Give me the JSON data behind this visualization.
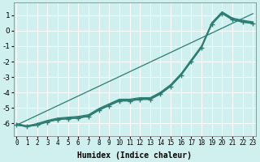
{
  "xlabel": "Humidex (Indice chaleur)",
  "background_color": "#cff0ee",
  "grid_color": "#ffffff",
  "line_color": "#2d7b73",
  "xlim": [
    -0.3,
    23.3
  ],
  "ylim": [
    -6.8,
    1.8
  ],
  "yticks": [
    1,
    0,
    -1,
    -2,
    -3,
    -4,
    -5,
    -6
  ],
  "xticks": [
    0,
    1,
    2,
    3,
    4,
    5,
    6,
    7,
    8,
    9,
    10,
    11,
    12,
    13,
    14,
    15,
    16,
    17,
    18,
    19,
    20,
    21,
    22,
    23
  ],
  "series_x": [
    0,
    1,
    2,
    3,
    4,
    5,
    6,
    7,
    8,
    9,
    10,
    11,
    12,
    13,
    14,
    15,
    16,
    17,
    18,
    19,
    20,
    21,
    22,
    23
  ],
  "series": [
    [
      -6.1,
      -6.2,
      -6.1,
      -5.9,
      -5.75,
      -5.7,
      -5.65,
      -5.55,
      -5.15,
      -4.85,
      -4.55,
      -4.55,
      -4.45,
      -4.45,
      -4.1,
      -3.6,
      -2.9,
      -2.0,
      -1.1,
      0.4,
      1.1,
      0.7,
      0.55,
      0.45
    ],
    [
      -6.1,
      -6.2,
      -6.1,
      -5.9,
      -5.74,
      -5.68,
      -5.63,
      -5.52,
      -5.12,
      -4.82,
      -4.52,
      -4.52,
      -4.42,
      -4.42,
      -4.07,
      -3.57,
      -2.87,
      -1.97,
      -1.07,
      0.43,
      1.13,
      0.73,
      0.58,
      0.48
    ],
    [
      -6.05,
      -6.18,
      -6.05,
      -5.85,
      -5.7,
      -5.64,
      -5.59,
      -5.48,
      -5.08,
      -4.78,
      -4.48,
      -4.48,
      -4.38,
      -4.38,
      -4.03,
      -3.53,
      -2.83,
      -1.93,
      -1.03,
      0.47,
      1.17,
      0.77,
      0.62,
      0.52
    ],
    [
      -6.0,
      -6.15,
      -6.0,
      -5.8,
      -5.65,
      -5.59,
      -5.54,
      -5.43,
      -5.03,
      -4.73,
      -4.43,
      -4.43,
      -4.33,
      -4.33,
      -3.98,
      -3.48,
      -2.78,
      -1.88,
      -0.98,
      0.52,
      1.22,
      0.82,
      0.67,
      0.57
    ]
  ],
  "marked_series_idx": 0,
  "ref_line_x": [
    0,
    23
  ],
  "ref_line_y": [
    -6.1,
    1.1
  ]
}
